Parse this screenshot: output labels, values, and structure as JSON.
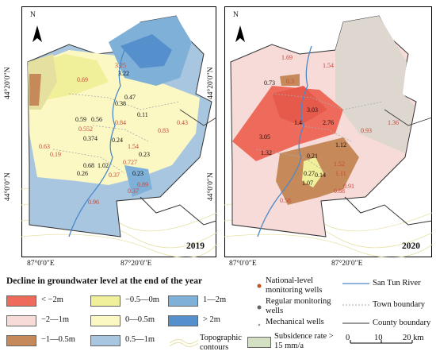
{
  "panels": [
    {
      "year": "2019",
      "values": [
        "3.25",
        "3.22",
        "0.69",
        "0.47",
        "0.38",
        "0.11",
        "0.59",
        "0.56",
        "0.84",
        "0.552",
        "0.83",
        "0.43",
        "0.374",
        "0.24",
        "0.63",
        "0.19",
        "1.54",
        "0.23",
        "0.68",
        "1.02",
        "0.727",
        "0.26",
        "0.37",
        "0.23",
        "0.89",
        "0.96",
        "0.37"
      ]
    },
    {
      "year": "2020",
      "values": [
        "1.69",
        "1.54",
        "0.73",
        "0.3",
        "3.03",
        "2.76",
        "1.4",
        "0.93",
        "1.36",
        "1.12",
        "3.05",
        "1.32",
        "0.21",
        "1.52",
        "0.27",
        "0.14",
        "1.11",
        "1.07",
        "0.88",
        "0.91",
        "0.58"
      ]
    }
  ],
  "axes": {
    "lat_top": "44°20′0″N",
    "lat_bottom": "44°0′0″N",
    "lon_left": "87°0′0″E",
    "lon_right": "87°20′0″E"
  },
  "north": "N",
  "legend": {
    "title": "Decline in groundwater level at the end of the year",
    "classes": [
      {
        "label": "< −2m",
        "color": "#ee6a5a"
      },
      {
        "label": "−2—1m",
        "color": "#f7dbd9"
      },
      {
        "label": "−1—0.5m",
        "color": "#c68a5a"
      },
      {
        "label": "−0.5—0m",
        "color": "#f1f09a"
      },
      {
        "label": "0—0.5m",
        "color": "#fbf8c4"
      },
      {
        "label": "0.5—1m",
        "color": "#a8c6e0"
      },
      {
        "label": "1—2m",
        "color": "#7fb0d8"
      },
      {
        "label": "> 2m",
        "color": "#5590cd"
      }
    ],
    "topographic": "Topographic contours",
    "national": "National-level monitoring wells",
    "regular": "Regular monitoring wells",
    "mechanical": "Mechanical wells",
    "subsidence": "Subsidence rate > 15 mm/a",
    "river": "San Tun River",
    "town": "Town boundary",
    "county": "County boundary",
    "scale": [
      "0",
      "10",
      "20 km"
    ]
  }
}
